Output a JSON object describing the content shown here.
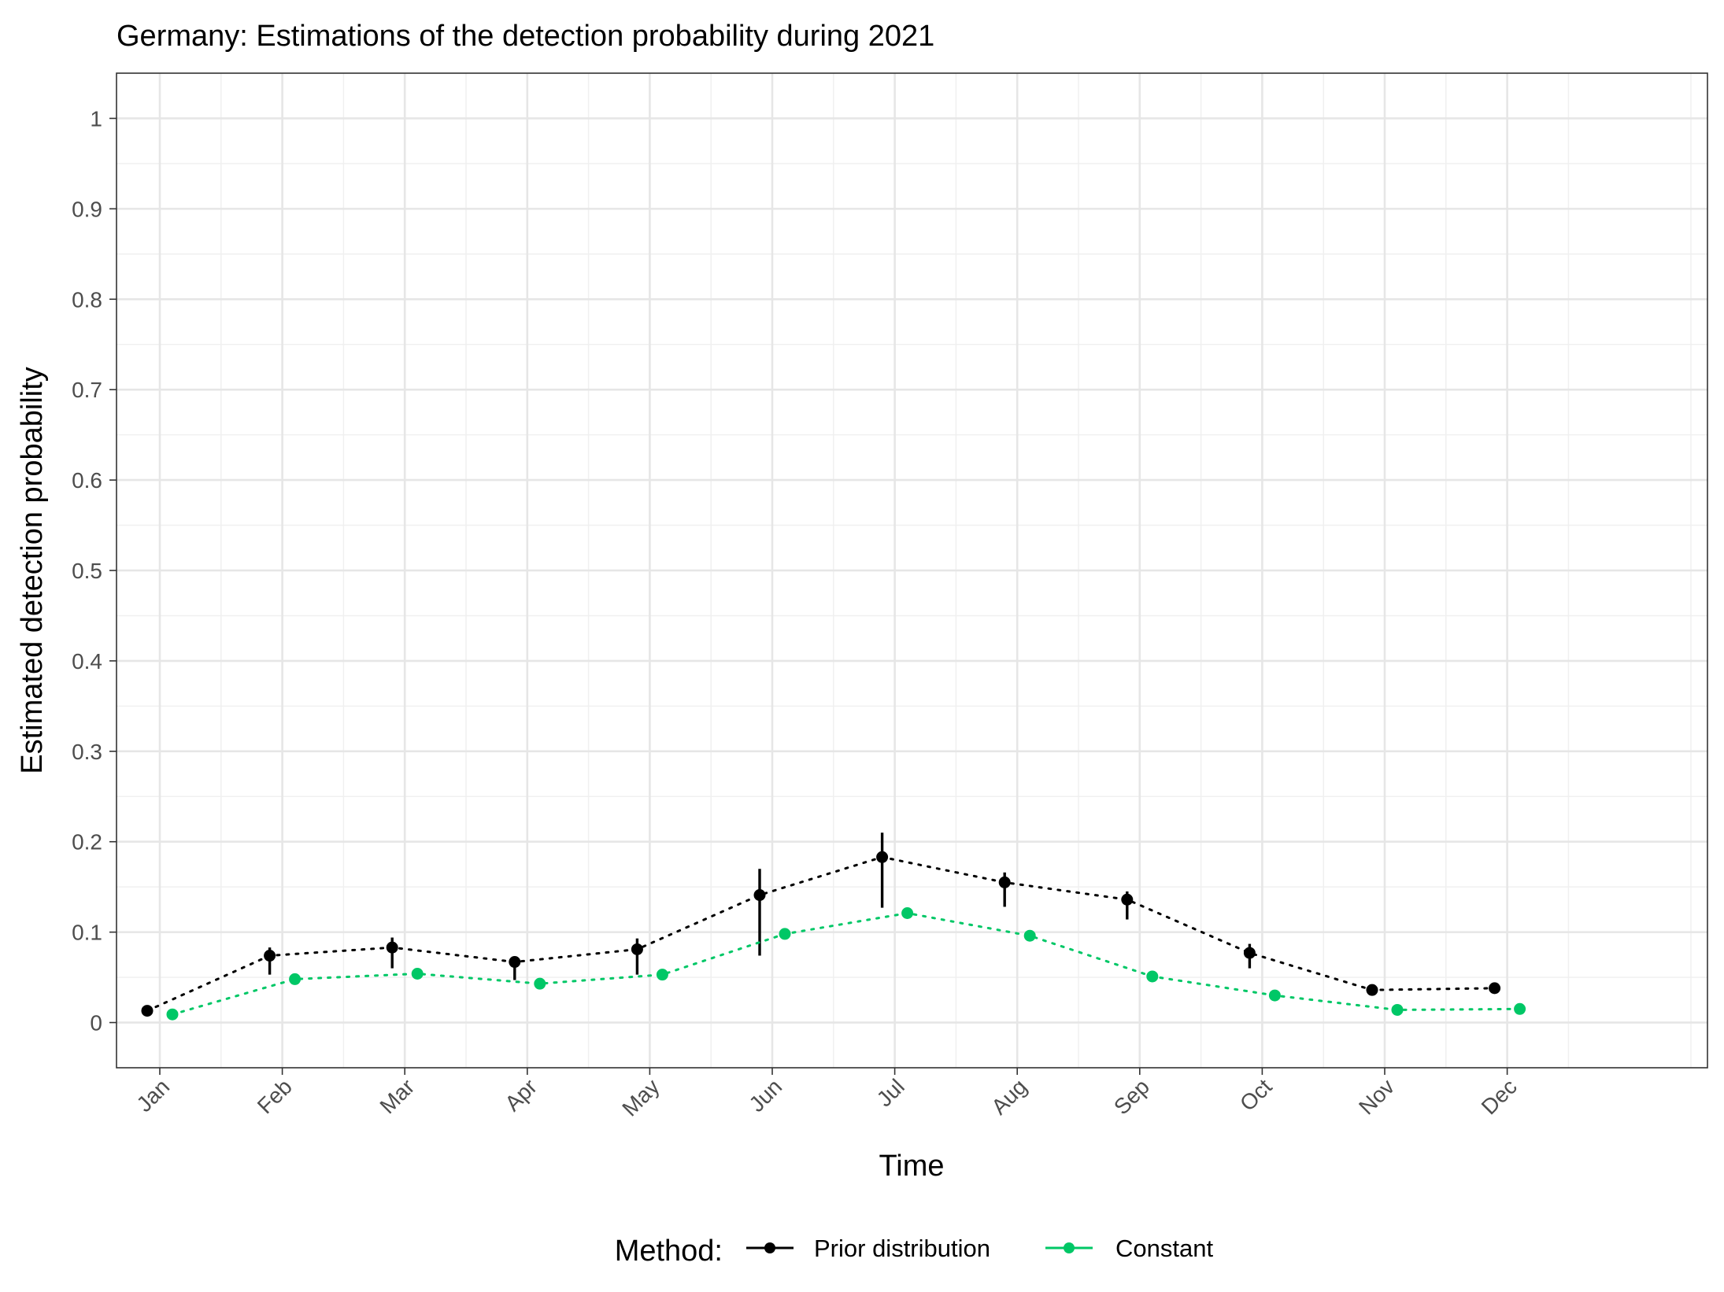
{
  "chart_data": {
    "type": "line",
    "title": "Germany: Estimations of the detection probability during 2021",
    "xlabel": "Time",
    "ylabel": "Estimated detection probability",
    "ylim": [
      -0.05,
      1.05
    ],
    "yticks": [
      0,
      0.1,
      0.2,
      0.3,
      0.4,
      0.5,
      0.6,
      0.7,
      0.8,
      0.9,
      1
    ],
    "ytick_labels": [
      "0",
      "0.1",
      "0.2",
      "0.3",
      "0.4",
      "0.5",
      "0.6",
      "0.7",
      "0.8",
      "0.9",
      "1"
    ],
    "categories": [
      "Jan",
      "Feb",
      "Mar",
      "Apr",
      "May",
      "Jun",
      "Jul",
      "Aug",
      "Sep",
      "Oct",
      "Nov",
      "Dec"
    ],
    "grid": true,
    "legend": {
      "title": "Method:",
      "position": "bottom"
    },
    "series": [
      {
        "name": "Prior distribution",
        "color": "#000000",
        "values": [
          0.013,
          0.074,
          0.083,
          0.067,
          0.081,
          0.141,
          0.183,
          0.155,
          0.136,
          0.077,
          0.036,
          0.038
        ],
        "lower": [
          0.013,
          0.053,
          0.06,
          0.047,
          0.053,
          0.074,
          0.127,
          0.128,
          0.114,
          0.06,
          0.036,
          0.038
        ],
        "upper": [
          0.013,
          0.083,
          0.094,
          0.073,
          0.093,
          0.17,
          0.21,
          0.166,
          0.145,
          0.087,
          0.036,
          0.038
        ]
      },
      {
        "name": "Constant",
        "color": "#00c766",
        "values": [
          0.009,
          0.048,
          0.054,
          0.043,
          0.053,
          0.098,
          0.121,
          0.096,
          0.051,
          0.03,
          0.014,
          0.015
        ]
      }
    ]
  }
}
